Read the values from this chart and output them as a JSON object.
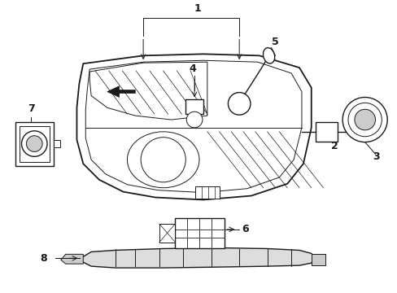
{
  "background_color": "#ffffff",
  "line_color": "#1a1a1a",
  "gray_fill": "#d0d0d0",
  "figsize": [
    4.89,
    3.6
  ],
  "dpi": 100
}
